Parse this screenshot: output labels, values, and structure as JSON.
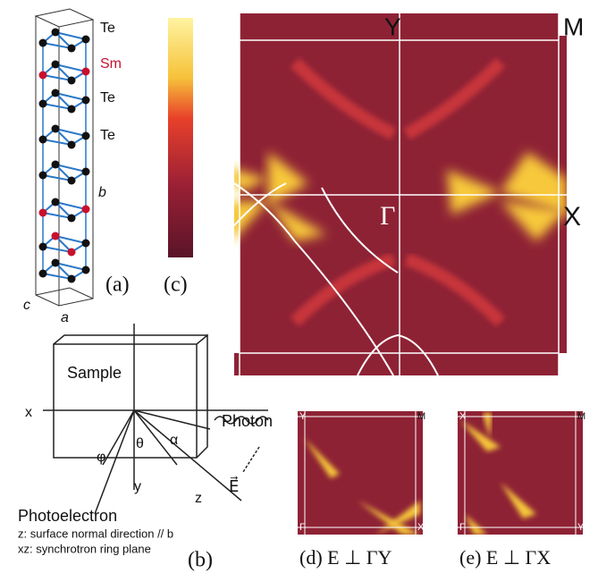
{
  "panel_a": {
    "atoms": [
      "Te",
      "Sm",
      "Te",
      "Te"
    ],
    "axis_b": "b",
    "axis_c": "c",
    "axis_a": "a",
    "label": "(a)"
  },
  "panel_c": {
    "label": "(c)",
    "Y": "Y",
    "M": "M",
    "Gamma": "Γ",
    "X": "X"
  },
  "panel_b": {
    "sample": "Sample",
    "x": "x",
    "photon": "Photon",
    "phi": "φ",
    "theta": "θ",
    "alpha": "α",
    "y": "y",
    "z": "z",
    "E": "E⃗",
    "photoelectron": "Photoelectron",
    "note1": "z: surface normal direction // b",
    "note2": "xz: synchrotron ring plane",
    "label": "(b)"
  },
  "panel_d": {
    "corners": [
      "Y",
      "M",
      "Γ",
      "X"
    ],
    "caption": "(d) E ⊥ ΓY"
  },
  "panel_e": {
    "corners": [
      "X",
      "M",
      "Γ",
      "Y"
    ],
    "caption": "(e) E ⊥ ΓX"
  }
}
